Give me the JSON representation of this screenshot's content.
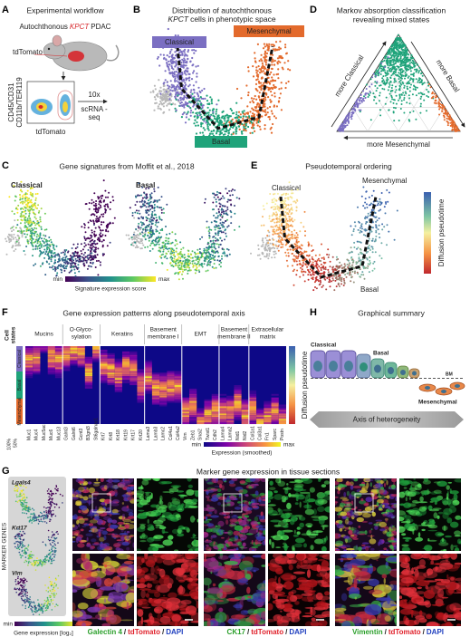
{
  "panels": {
    "A": {
      "letter": "A",
      "title": "Experimental workflow",
      "model": [
        "Autochthonous",
        "KPCT",
        "PDAC"
      ],
      "reporter": "tdTomato",
      "y_axis": [
        "CD45/CD31",
        "CD11b/TER119"
      ],
      "x_axis": "tdTomato",
      "method": [
        "10x",
        "scRNA -",
        "seq"
      ]
    },
    "B": {
      "letter": "B",
      "title": [
        "Distribution of autochthonous",
        "KPCT",
        "cells in phenotypic space"
      ],
      "states": {
        "classical": "Classical",
        "mesenchymal": "Mesenchymal",
        "basal": "Basal"
      }
    },
    "C": {
      "letter": "C",
      "title": "Gene signatures from Moffit et al., 2018",
      "signatures": [
        "Classical",
        "Basal"
      ],
      "scale": [
        "min",
        "max"
      ],
      "scale_label": "Signature expression score"
    },
    "D": {
      "letter": "D",
      "title": [
        "Markov absorption classification",
        "revealing mixed states"
      ],
      "axes": [
        "more Classical",
        "more Basal",
        "more Mesenchymal"
      ]
    },
    "E": {
      "letter": "E",
      "title": "Pseudotemporal ordering",
      "states": [
        "Classical",
        "Mesenchymal",
        "Basal"
      ],
      "scale_label": "Diffusion pseudotime"
    },
    "F": {
      "letter": "F",
      "title": "Gene expression patterns along pseudotemporal axis",
      "row_header": [
        "Cell",
        "states"
      ],
      "states": [
        "Classical",
        "Basal",
        "Mesenchymal"
      ],
      "proportions": [
        "100%",
        "50%"
      ],
      "groups": [
        {
          "lines": [
            "Mucins"
          ],
          "genes": [
            "Muc1",
            "Muc4",
            "Muc5ac",
            "Muc6",
            "Muc13"
          ]
        },
        {
          "lines": [
            "O-Glyco-",
            "sylation"
          ],
          "genes": [
            "Galnt3",
            "Galnt6",
            "Gcnt3",
            "B3gnt3",
            "St6galnac1"
          ]
        },
        {
          "lines": [
            "Keratins"
          ],
          "genes": [
            "Krt7",
            "Krt8",
            "Krt18",
            "Krt19",
            "Krt17",
            "Krt20"
          ]
        },
        {
          "lines": [
            "Basement",
            "membrane I"
          ],
          "genes": [
            "Lama3",
            "Lamb3",
            "Lamc2",
            "Col4a1",
            "Col4a2"
          ]
        },
        {
          "lines": [
            "EMT"
          ],
          "genes": [
            "Vim",
            "Zeb1",
            "Snai2",
            "Twist1",
            "Cdh2"
          ]
        },
        {
          "lines": [
            "Basement",
            "membrane II"
          ],
          "genes": [
            "Lama4",
            "Lama2",
            "Nid1",
            "Nid2"
          ]
        },
        {
          "lines": [
            "Extracellular",
            "matrix"
          ],
          "genes": [
            "Col1a1",
            "Col3a1",
            "Fn1",
            "Sparc",
            "Postn"
          ]
        }
      ],
      "pseudotime_label": "Diffusion pseudotime",
      "scale": [
        "min",
        "max"
      ],
      "scale_label": "Expression (smoothed)"
    },
    "G": {
      "letter": "G",
      "title": "Marker gene expression in tissue sections",
      "side_label": "MARKER GENES",
      "genes": [
        "Lgals4",
        "Krt17",
        "Vim"
      ],
      "scale": [
        "min",
        "max"
      ],
      "scale_label": "Gene expression [log₂]",
      "stains": [
        [
          "Galectin 4",
          "/",
          "tdTomato",
          "/",
          "DAPI"
        ],
        [
          "CK17",
          "/",
          "tdTomato",
          "/",
          "DAPI"
        ],
        [
          "Vimentin",
          "/",
          "tdTomato",
          "/",
          "DAPI"
        ]
      ]
    },
    "H": {
      "letter": "H",
      "title": "Graphical summary",
      "labels": {
        "classical": "Classical",
        "basal": "Basal",
        "bm": "BM",
        "mesenchymal": "Mesenchymal"
      },
      "axis": "Axis of heterogeneity"
    }
  }
}
